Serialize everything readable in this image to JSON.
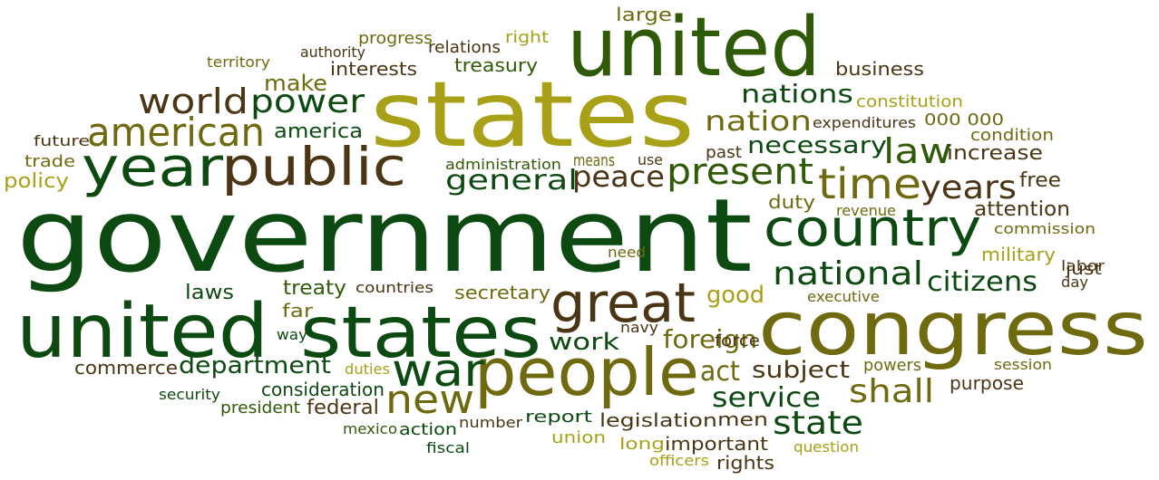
{
  "palette": {
    "dark_green": "#0d4a12",
    "green": "#2f5a08",
    "olive": "#6f6a10",
    "light_olive": "#a8a017",
    "brown": "#4a3514"
  },
  "words": [
    {
      "text": "government",
      "c": "dark_green"
    },
    {
      "text": "states",
      "c": "light_olive"
    },
    {
      "text": "united",
      "c": "green"
    },
    {
      "text": "congress",
      "c": "olive"
    },
    {
      "text": "united",
      "c": "dark_green"
    },
    {
      "text": "states",
      "c": "dark_green"
    },
    {
      "text": "people",
      "c": "olive"
    },
    {
      "text": "public",
      "c": "brown"
    },
    {
      "text": "year",
      "c": "dark_green"
    },
    {
      "text": "great",
      "c": "brown"
    },
    {
      "text": "country",
      "c": "dark_green"
    },
    {
      "text": "time",
      "c": "olive"
    },
    {
      "text": "war",
      "c": "dark_green"
    },
    {
      "text": "american",
      "c": "olive"
    },
    {
      "text": "world",
      "c": "brown"
    },
    {
      "text": "power",
      "c": "dark_green"
    },
    {
      "text": "present",
      "c": "green"
    },
    {
      "text": "new",
      "c": "olive"
    },
    {
      "text": "national",
      "c": "dark_green"
    },
    {
      "text": "law",
      "c": "green"
    },
    {
      "text": "years",
      "c": "brown"
    },
    {
      "text": "state",
      "c": "dark_green"
    },
    {
      "text": "nation",
      "c": "olive"
    },
    {
      "text": "nations",
      "c": "dark_green"
    },
    {
      "text": "general",
      "c": "dark_green"
    },
    {
      "text": "peace",
      "c": "brown"
    },
    {
      "text": "shall",
      "c": "olive"
    },
    {
      "text": "necessary",
      "c": "dark_green"
    },
    {
      "text": "citizens",
      "c": "dark_green"
    },
    {
      "text": "service",
      "c": "dark_green"
    },
    {
      "text": "foreign",
      "c": "olive"
    },
    {
      "text": "department",
      "c": "dark_green"
    },
    {
      "text": "act",
      "c": "olive"
    },
    {
      "text": "work",
      "c": "dark_green"
    },
    {
      "text": "subject",
      "c": "brown"
    },
    {
      "text": "good",
      "c": "light_olive"
    },
    {
      "text": "make",
      "c": "olive"
    },
    {
      "text": "america",
      "c": "dark_green"
    },
    {
      "text": "treasury",
      "c": "green"
    },
    {
      "text": "interests",
      "c": "brown"
    },
    {
      "text": "business",
      "c": "brown"
    },
    {
      "text": "large",
      "c": "olive"
    },
    {
      "text": "relations",
      "c": "brown"
    },
    {
      "text": "progress",
      "c": "olive"
    },
    {
      "text": "authority",
      "c": "brown"
    },
    {
      "text": "right",
      "c": "light_olive"
    },
    {
      "text": "territory",
      "c": "olive"
    },
    {
      "text": "constitution",
      "c": "light_olive"
    },
    {
      "text": "expenditures",
      "c": "brown"
    },
    {
      "text": "000 000",
      "c": "olive"
    },
    {
      "text": "condition",
      "c": "olive"
    },
    {
      "text": "increase",
      "c": "brown"
    },
    {
      "text": "free",
      "c": "brown"
    },
    {
      "text": "attention",
      "c": "brown"
    },
    {
      "text": "duty",
      "c": "olive"
    },
    {
      "text": "revenue",
      "c": "olive"
    },
    {
      "text": "commission",
      "c": "olive"
    },
    {
      "text": "military",
      "c": "light_olive"
    },
    {
      "text": "just",
      "c": "brown"
    },
    {
      "text": "labor",
      "c": "brown"
    },
    {
      "text": "day",
      "c": "brown"
    },
    {
      "text": "executive",
      "c": "olive"
    },
    {
      "text": "past",
      "c": "brown"
    },
    {
      "text": "means",
      "c": "olive"
    },
    {
      "text": "use",
      "c": "brown"
    },
    {
      "text": "administration",
      "c": "green"
    },
    {
      "text": "future",
      "c": "brown"
    },
    {
      "text": "trade",
      "c": "olive"
    },
    {
      "text": "policy",
      "c": "light_olive"
    },
    {
      "text": "laws",
      "c": "dark_green"
    },
    {
      "text": "treaty",
      "c": "green"
    },
    {
      "text": "countries",
      "c": "brown"
    },
    {
      "text": "secretary",
      "c": "olive"
    },
    {
      "text": "far",
      "c": "olive"
    },
    {
      "text": "way",
      "c": "dark_green"
    },
    {
      "text": "need",
      "c": "olive"
    },
    {
      "text": "navy",
      "c": "brown"
    },
    {
      "text": "force",
      "c": "brown"
    },
    {
      "text": "commerce",
      "c": "brown"
    },
    {
      "text": "duties",
      "c": "light_olive"
    },
    {
      "text": "powers",
      "c": "olive"
    },
    {
      "text": "session",
      "c": "olive"
    },
    {
      "text": "purpose",
      "c": "brown"
    },
    {
      "text": "security",
      "c": "dark_green"
    },
    {
      "text": "consideration",
      "c": "dark_green"
    },
    {
      "text": "president",
      "c": "green"
    },
    {
      "text": "federal",
      "c": "brown"
    },
    {
      "text": "report",
      "c": "dark_green"
    },
    {
      "text": "legislation",
      "c": "brown"
    },
    {
      "text": "men",
      "c": "brown"
    },
    {
      "text": "mexico",
      "c": "green"
    },
    {
      "text": "action",
      "c": "dark_green"
    },
    {
      "text": "number",
      "c": "brown"
    },
    {
      "text": "union",
      "c": "light_olive"
    },
    {
      "text": "long",
      "c": "light_olive"
    },
    {
      "text": "important",
      "c": "brown"
    },
    {
      "text": "question",
      "c": "light_olive"
    },
    {
      "text": "fiscal",
      "c": "dark_green"
    },
    {
      "text": "officers",
      "c": "light_olive"
    },
    {
      "text": "rights",
      "c": "brown"
    }
  ]
}
